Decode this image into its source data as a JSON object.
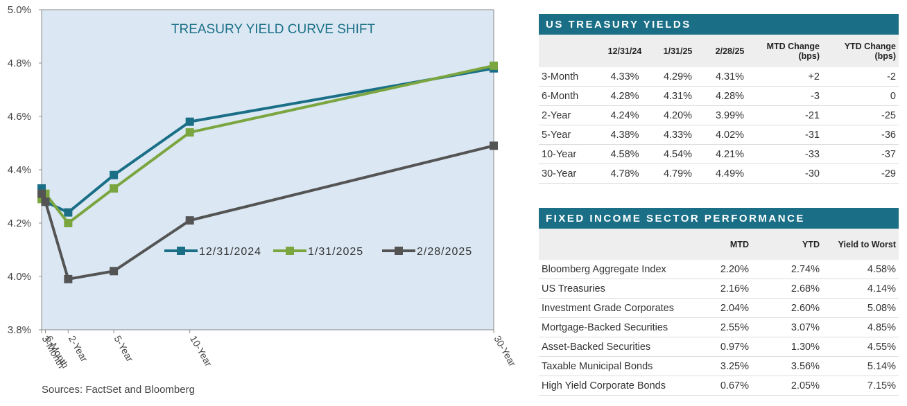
{
  "chart_data": {
    "type": "line",
    "title": "TREASURY YIELD CURVE SHIFT",
    "x": [
      0.25,
      0.5,
      2,
      5,
      10,
      30
    ],
    "xlim": [
      0.25,
      30
    ],
    "xticks": [
      {
        "value": 0.25,
        "label": "3-Month"
      },
      {
        "value": 0.5,
        "label": "6-Month"
      },
      {
        "value": 2,
        "label": "2-Year"
      },
      {
        "value": 5,
        "label": "5-Year"
      },
      {
        "value": 10,
        "label": "10-Year"
      },
      {
        "value": 30,
        "label": "30-Year"
      }
    ],
    "ylim": [
      3.8,
      5.0
    ],
    "yticks": [
      {
        "value": 3.8,
        "label": "3.8%"
      },
      {
        "value": 4.0,
        "label": "4.0%"
      },
      {
        "value": 4.2,
        "label": "4.2%"
      },
      {
        "value": 4.4,
        "label": "4.4%"
      },
      {
        "value": 4.6,
        "label": "4.6%"
      },
      {
        "value": 4.8,
        "label": "4.8%"
      },
      {
        "value": 5.0,
        "label": "5.0%"
      }
    ],
    "series": [
      {
        "name": "12/31/2024",
        "color": "#1a6f87",
        "values": [
          4.33,
          4.28,
          4.24,
          4.38,
          4.58,
          4.78
        ]
      },
      {
        "name": "1/31/2025",
        "color": "#7aa53f",
        "values": [
          4.29,
          4.31,
          4.2,
          4.33,
          4.54,
          4.79
        ]
      },
      {
        "name": "2/28/2025",
        "color": "#545454",
        "values": [
          4.31,
          4.28,
          3.99,
          4.02,
          4.21,
          4.49
        ]
      }
    ],
    "source": "Sources: FactSet and Bloomberg"
  },
  "treasury_table": {
    "title": "US TREASURY YIELDS",
    "columns": [
      "12/31/24",
      "1/31/25",
      "2/28/25",
      "MTD Change (bps)",
      "YTD Change (bps)"
    ],
    "rows": [
      {
        "label": "3-Month",
        "values": [
          "4.33%",
          "4.29%",
          "4.31%",
          "+2",
          "-2"
        ]
      },
      {
        "label": "6-Month",
        "values": [
          "4.28%",
          "4.31%",
          "4.28%",
          "-3",
          "0"
        ]
      },
      {
        "label": "2-Year",
        "values": [
          "4.24%",
          "4.20%",
          "3.99%",
          "-21",
          "-25"
        ]
      },
      {
        "label": "5-Year",
        "values": [
          "4.38%",
          "4.33%",
          "4.02%",
          "-31",
          "-36"
        ]
      },
      {
        "label": "10-Year",
        "values": [
          "4.58%",
          "4.54%",
          "4.21%",
          "-33",
          "-37"
        ]
      },
      {
        "label": "30-Year",
        "values": [
          "4.78%",
          "4.79%",
          "4.49%",
          "-30",
          "-29"
        ]
      }
    ]
  },
  "sector_table": {
    "title": "FIXED INCOME SECTOR PERFORMANCE",
    "columns": [
      "MTD",
      "YTD",
      "Yield to Worst"
    ],
    "rows": [
      {
        "label": "Bloomberg Aggregate Index",
        "values": [
          "2.20%",
          "2.74%",
          "4.58%"
        ]
      },
      {
        "label": "US Treasuries",
        "values": [
          "2.16%",
          "2.68%",
          "4.14%"
        ]
      },
      {
        "label": "Investment Grade Corporates",
        "values": [
          "2.04%",
          "2.60%",
          "5.08%"
        ]
      },
      {
        "label": "Mortgage-Backed Securities",
        "values": [
          "2.55%",
          "3.07%",
          "4.85%"
        ]
      },
      {
        "label": "Asset-Backed Securities",
        "values": [
          "0.97%",
          "1.30%",
          "4.55%"
        ]
      },
      {
        "label": "Taxable Municipal Bonds",
        "values": [
          "3.25%",
          "3.56%",
          "5.14%"
        ]
      },
      {
        "label": "High Yield Corporate Bonds",
        "values": [
          "0.67%",
          "2.05%",
          "7.15%"
        ]
      }
    ]
  }
}
